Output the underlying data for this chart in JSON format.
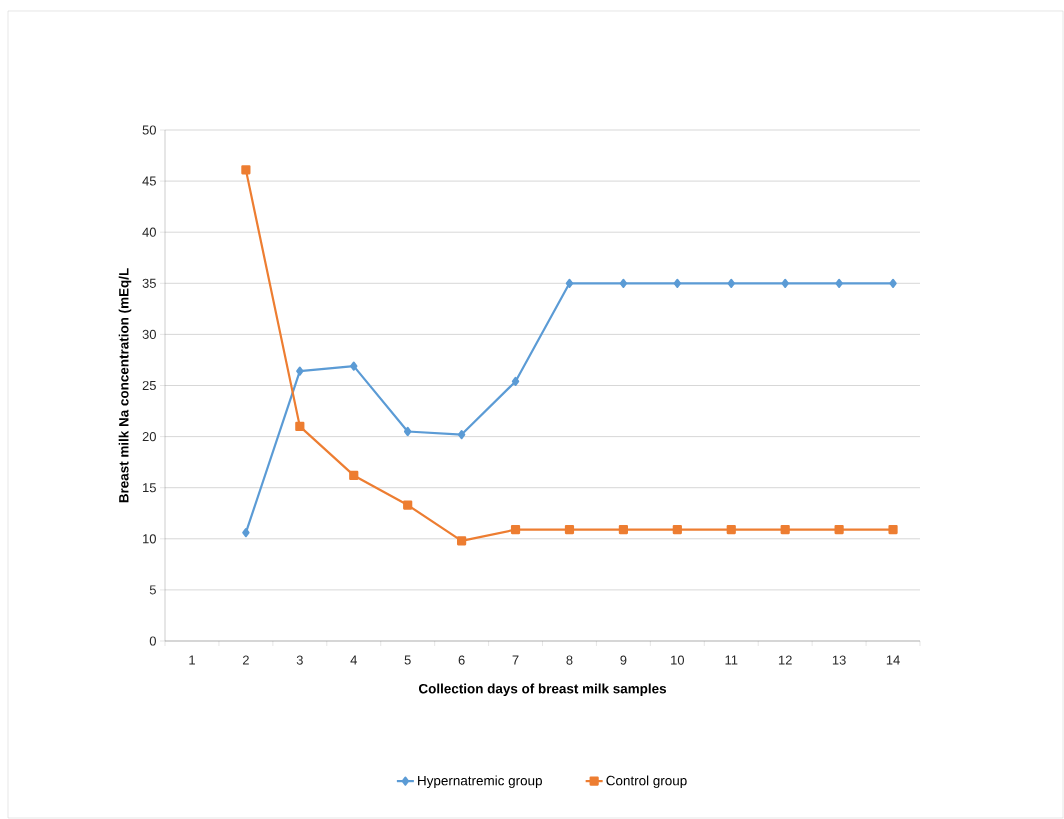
{
  "chart_data": {
    "type": "line",
    "xlabel": "Collection days of breast milk samples",
    "ylabel": "Breast milk Na concentration (mEq/L",
    "categories": [
      "1",
      "2",
      "3",
      "4",
      "5",
      "6",
      "7",
      "8",
      "9",
      "10",
      "11",
      "12",
      "13",
      "14"
    ],
    "series": [
      {
        "name": "Hypernatremic group",
        "color": "#5b9bd5",
        "marker": "diamond",
        "values": [
          null,
          10.6,
          26.4,
          26.9,
          20.5,
          20.2,
          25.4,
          35,
          35,
          35,
          35,
          35,
          35,
          35
        ]
      },
      {
        "name": "Control group",
        "color": "#ed7d31",
        "marker": "square",
        "values": [
          null,
          46.1,
          21.0,
          16.2,
          13.3,
          9.8,
          10.9,
          10.9,
          10.9,
          10.9,
          10.9,
          10.9,
          10.9,
          10.9
        ]
      }
    ],
    "ylim": [
      0,
      50
    ],
    "yticks": [
      0,
      5,
      10,
      15,
      20,
      25,
      30,
      35,
      40,
      45,
      50
    ],
    "grid": "y",
    "legend": "bottom",
    "line_style": "solid"
  }
}
